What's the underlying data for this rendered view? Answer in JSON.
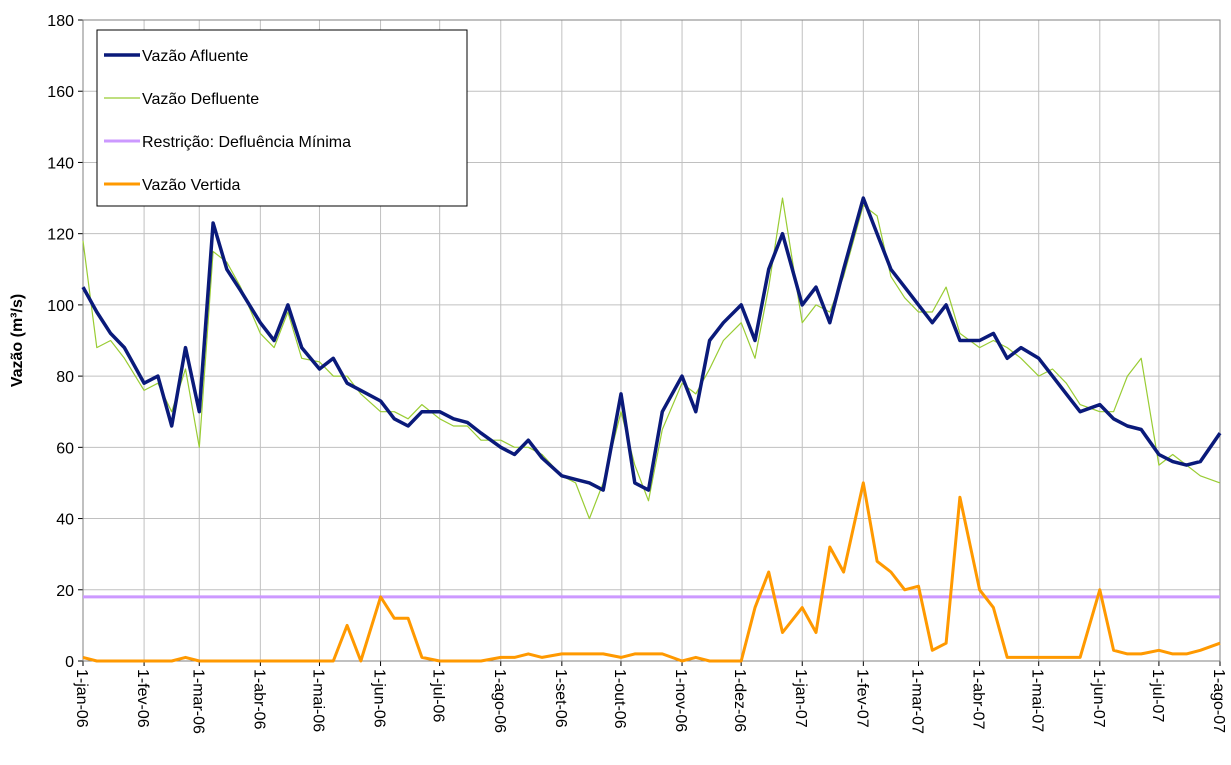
{
  "chart_data": {
    "type": "line",
    "ylabel": "Vazão (m³/s)",
    "x": [
      "2006-01-01",
      "2006-01-08",
      "2006-01-15",
      "2006-01-22",
      "2006-02-01",
      "2006-02-08",
      "2006-02-15",
      "2006-02-22",
      "2006-03-01",
      "2006-03-08",
      "2006-03-15",
      "2006-03-22",
      "2006-04-01",
      "2006-04-08",
      "2006-04-15",
      "2006-04-22",
      "2006-05-01",
      "2006-05-08",
      "2006-05-15",
      "2006-05-22",
      "2006-06-01",
      "2006-06-08",
      "2006-06-15",
      "2006-06-22",
      "2006-07-01",
      "2006-07-08",
      "2006-07-15",
      "2006-07-22",
      "2006-08-01",
      "2006-08-08",
      "2006-08-15",
      "2006-08-22",
      "2006-09-01",
      "2006-09-08",
      "2006-09-15",
      "2006-09-22",
      "2006-10-01",
      "2006-10-08",
      "2006-10-15",
      "2006-10-22",
      "2006-11-01",
      "2006-11-08",
      "2006-11-15",
      "2006-11-22",
      "2006-12-01",
      "2006-12-08",
      "2006-12-15",
      "2006-12-22",
      "2007-01-01",
      "2007-01-08",
      "2007-01-15",
      "2007-01-22",
      "2007-02-01",
      "2007-02-08",
      "2007-02-15",
      "2007-02-22",
      "2007-03-01",
      "2007-03-08",
      "2007-03-15",
      "2007-03-22",
      "2007-04-01",
      "2007-04-08",
      "2007-04-15",
      "2007-04-22",
      "2007-05-01",
      "2007-05-08",
      "2007-05-15",
      "2007-05-22",
      "2007-06-01",
      "2007-06-08",
      "2007-06-15",
      "2007-06-22",
      "2007-07-01",
      "2007-07-08",
      "2007-07-15",
      "2007-07-22",
      "2007-08-01"
    ],
    "series": [
      {
        "name": "Vazão Afluente",
        "color": "#0a1a7a",
        "width": 3.5,
        "values": [
          105,
          98,
          92,
          88,
          78,
          80,
          66,
          88,
          70,
          123,
          110,
          104,
          95,
          90,
          100,
          88,
          82,
          85,
          78,
          76,
          73,
          68,
          66,
          70,
          70,
          68,
          67,
          64,
          60,
          58,
          62,
          57,
          52,
          51,
          50,
          48,
          75,
          50,
          48,
          70,
          80,
          70,
          90,
          95,
          100,
          90,
          110,
          120,
          100,
          105,
          95,
          110,
          130,
          120,
          110,
          105,
          100,
          95,
          100,
          90,
          90,
          92,
          85,
          88,
          85,
          80,
          75,
          70,
          72,
          68,
          66,
          65,
          58,
          56,
          55,
          56,
          64
        ]
      },
      {
        "name": "Vazão Defluente",
        "color": "#99cc33",
        "width": 1.2,
        "values": [
          118,
          88,
          90,
          85,
          76,
          78,
          70,
          82,
          60,
          115,
          112,
          105,
          92,
          88,
          98,
          85,
          84,
          80,
          80,
          75,
          70,
          70,
          68,
          72,
          68,
          66,
          66,
          62,
          62,
          60,
          60,
          58,
          52,
          50,
          40,
          50,
          70,
          55,
          45,
          65,
          78,
          75,
          82,
          90,
          95,
          85,
          105,
          130,
          95,
          100,
          98,
          108,
          128,
          125,
          108,
          102,
          98,
          98,
          105,
          92,
          88,
          90,
          88,
          85,
          80,
          82,
          78,
          72,
          70,
          70,
          80,
          85,
          55,
          58,
          55,
          52,
          50
        ]
      },
      {
        "name": "Vazão Vertida",
        "color": "#ff9900",
        "width": 3,
        "values": [
          1,
          0,
          0,
          0,
          0,
          0,
          0,
          1,
          0,
          0,
          0,
          0,
          0,
          0,
          0,
          0,
          0,
          0,
          10,
          0,
          18,
          12,
          12,
          1,
          0,
          0,
          0,
          0,
          1,
          1,
          2,
          1,
          2,
          2,
          2,
          2,
          1,
          2,
          2,
          2,
          0,
          1,
          0,
          0,
          0,
          15,
          25,
          8,
          15,
          8,
          32,
          25,
          50,
          28,
          25,
          20,
          21,
          3,
          5,
          46,
          20,
          15,
          1,
          1,
          1,
          1,
          1,
          1,
          20,
          3,
          2,
          2,
          3,
          2,
          2,
          3,
          5
        ]
      }
    ],
    "reference_lines": [
      {
        "name": "Restrição: Defluência Mínima",
        "color": "#cc99ff",
        "value": 18
      }
    ],
    "xlim": [
      "2006-01-01",
      "2007-08-01"
    ],
    "xticks": [
      {
        "value": "2006-01-01",
        "label": "1-jan-06"
      },
      {
        "value": "2006-02-01",
        "label": "1-fev-06"
      },
      {
        "value": "2006-03-01",
        "label": "1-mar-06"
      },
      {
        "value": "2006-04-01",
        "label": "1-abr-06"
      },
      {
        "value": "2006-05-01",
        "label": "1-mai-06"
      },
      {
        "value": "2006-06-01",
        "label": "1-jun-06"
      },
      {
        "value": "2006-07-01",
        "label": "1-jul-06"
      },
      {
        "value": "2006-08-01",
        "label": "1-ago-06"
      },
      {
        "value": "2006-09-01",
        "label": "1-set-06"
      },
      {
        "value": "2006-10-01",
        "label": "1-out-06"
      },
      {
        "value": "2006-11-01",
        "label": "1-nov-06"
      },
      {
        "value": "2006-12-01",
        "label": "1-dez-06"
      },
      {
        "value": "2007-01-01",
        "label": "1-jan-07"
      },
      {
        "value": "2007-02-01",
        "label": "1-fev-07"
      },
      {
        "value": "2007-03-01",
        "label": "1-mar-07"
      },
      {
        "value": "2007-04-01",
        "label": "1-abr-07"
      },
      {
        "value": "2007-05-01",
        "label": "1-mai-07"
      },
      {
        "value": "2007-06-01",
        "label": "1-jun-07"
      },
      {
        "value": "2007-07-01",
        "label": "1-jul-07"
      },
      {
        "value": "2007-08-01",
        "label": "1-ago-07"
      }
    ],
    "ylim": [
      0,
      180
    ],
    "yticks": [
      0,
      20,
      40,
      60,
      80,
      100,
      120,
      140,
      160,
      180
    ],
    "grid": true
  }
}
